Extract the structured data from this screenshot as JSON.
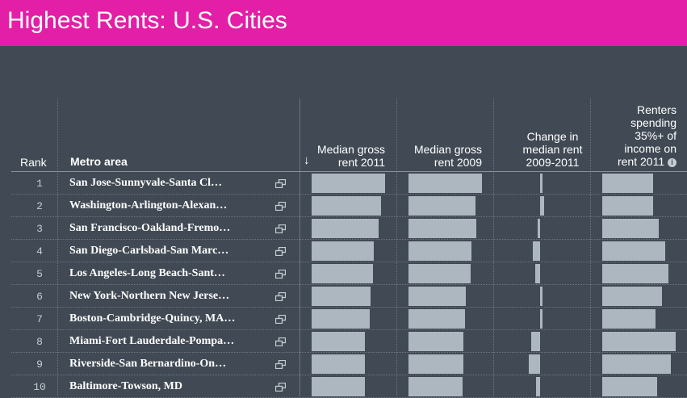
{
  "title": "Highest Rents: U.S. Cities",
  "headers": {
    "rank": "Rank",
    "metro": "Metro area",
    "sort_indicator": "↓",
    "rent2011": [
      "Median gross",
      "rent 2011"
    ],
    "rent2009": [
      "Median gross",
      "rent 2009"
    ],
    "change": [
      "Change in",
      "median rent",
      "2009-2011"
    ],
    "renters": [
      "Renters",
      "spending",
      "35%+ of",
      "income on",
      "rent 2011"
    ],
    "info_icon": "info-icon",
    "popout_icon": "popout-icon"
  },
  "colors": {
    "title_bar": "#e21fa6",
    "background": "#414a54",
    "bar": "#adb7c0"
  },
  "chart_data": {
    "type": "table",
    "rows": [
      {
        "rank": "1",
        "metro": "San Jose-Sunnyvale-Santa Cl…"
      },
      {
        "rank": "2",
        "metro": "Washington-Arlington-Alexan…"
      },
      {
        "rank": "3",
        "metro": "San Francisco-Oakland-Fremo…"
      },
      {
        "rank": "4",
        "metro": "San Diego-Carlsbad-San Marc…"
      },
      {
        "rank": "5",
        "metro": "Los Angeles-Long Beach-Sant…"
      },
      {
        "rank": "6",
        "metro": "New York-Northern New Jerse…"
      },
      {
        "rank": "7",
        "metro": "Boston-Cambridge-Quincy, MA…"
      },
      {
        "rank": "8",
        "metro": "Miami-Fort Lauderdale-Pompa…"
      },
      {
        "rank": "9",
        "metro": "Riverside-San Bernardino-On…"
      },
      {
        "rank": "10",
        "metro": "Baltimore-Towson, MD"
      }
    ],
    "series": [
      {
        "key": "rent2011",
        "values": [
          1.0,
          0.94,
          0.91,
          0.85,
          0.83,
          0.8,
          0.79,
          0.73,
          0.73,
          0.73
        ]
      },
      {
        "key": "rent2009",
        "values": [
          1.0,
          0.91,
          0.92,
          0.86,
          0.85,
          0.78,
          0.77,
          0.75,
          0.75,
          0.74
        ]
      },
      {
        "key": "change",
        "values": [
          0.5,
          1.5,
          -1.0,
          -3.0,
          -2.0,
          1.0,
          0.5,
          -3.5,
          -4.5,
          -1.5
        ],
        "range": [
          -5,
          5
        ]
      },
      {
        "key": "renters",
        "values": [
          0.69,
          0.69,
          0.77,
          0.86,
          0.9,
          0.81,
          0.72,
          1.0,
          0.93,
          0.75
        ]
      }
    ]
  }
}
